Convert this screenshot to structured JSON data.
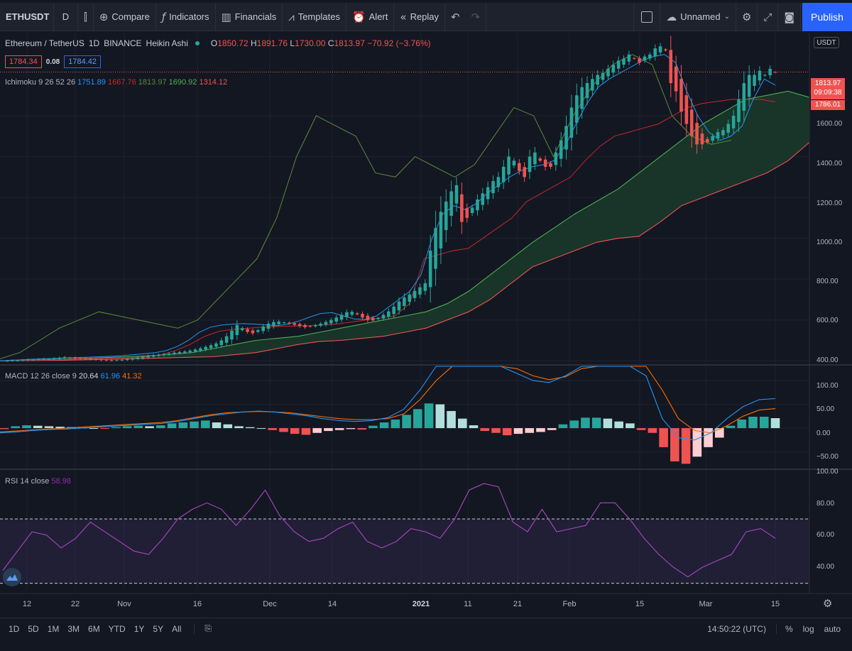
{
  "toolbar": {
    "symbol": "ETHUSDT",
    "interval": "D",
    "compare": "Compare",
    "indicators": "Indicators",
    "financials": "Financials",
    "templates": "Templates",
    "alert": "Alert",
    "replay": "Replay",
    "layout_name": "Unnamed",
    "publish": "Publish"
  },
  "legend": {
    "title": "Ethereum / TetherUS",
    "interval": "1D",
    "exchange": "BINANCE",
    "style": "Heikin Ashi",
    "o_label": "O",
    "o": "1850.72",
    "h_label": "H",
    "h": "1891.76",
    "l_label": "L",
    "l": "1730.00",
    "c_label": "C",
    "c": "1813.97",
    "change": "−70.92 (−3.76%)",
    "bid": "1784.34",
    "spread": "0.08",
    "ask": "1784.42"
  },
  "ichimoku": {
    "label": "Ichimoku 9 26 52 26",
    "conversion": "1751.89",
    "base": "1667.76",
    "lagging": "1813.97",
    "lead1": "1690.92",
    "lead2": "1314.12",
    "colors": {
      "conversion": "#2196f3",
      "base": "#c62828",
      "lagging": "#5c8a3a",
      "lead1": "#4caf50",
      "lead2": "#ef5350"
    }
  },
  "macd": {
    "label": "MACD 12 26 close 9",
    "histogram": "20.64",
    "macd": "61.96",
    "signal": "41.32",
    "scale": [
      "100.00",
      "50.00",
      "0.00",
      "−50.00"
    ]
  },
  "rsi": {
    "label": "RSI 14 close",
    "value": "58.98",
    "scale": [
      "100.00",
      "80.00",
      "60.00",
      "40.00"
    ]
  },
  "price_scale": {
    "currency": "USDT",
    "labels": [
      "1600.00",
      "1400.00",
      "1200.00",
      "1000.00",
      "800.00",
      "600.00",
      "400.00"
    ],
    "last_price": "1813.97",
    "countdown": "09:09:38",
    "base_price": "1786.01"
  },
  "time_axis": {
    "labels": [
      "12",
      "22",
      "Nov",
      "16",
      "Dec",
      "14",
      "2021",
      "11",
      "21",
      "Feb",
      "15",
      "Mar",
      "15"
    ]
  },
  "bottom_bar": {
    "ranges": [
      "1D",
      "5D",
      "1M",
      "3M",
      "6M",
      "YTD",
      "1Y",
      "5Y",
      "All"
    ],
    "clock": "14:50:22 (UTC)",
    "percent": "%",
    "log": "log",
    "auto": "auto"
  },
  "chart_data": {
    "type": "candlestick",
    "symbol": "ETHUSDT",
    "interval": "1D",
    "candle_style": "Heikin Ashi",
    "ylim": [
      380,
      2000
    ],
    "y_ticks": [
      400,
      600,
      800,
      1000,
      1200,
      1400,
      1600
    ],
    "colors": {
      "up": "#26a69a",
      "down": "#ef5350"
    },
    "close": [
      400,
      402,
      401,
      404,
      406,
      405,
      408,
      410,
      409,
      412,
      415,
      418,
      416,
      412,
      410,
      409,
      407,
      405,
      403,
      402,
      401,
      403,
      405,
      408,
      412,
      416,
      420,
      425,
      428,
      430,
      433,
      436,
      440,
      443,
      446,
      450,
      455,
      461,
      468,
      476,
      485,
      500,
      520,
      548,
      575,
      560,
      542,
      535,
      550,
      568,
      582,
      590,
      592,
      588,
      582,
      576,
      570,
      565,
      568,
      575,
      582,
      590,
      600,
      612,
      625,
      638,
      640,
      628,
      612,
      600,
      598,
      610,
      625,
      642,
      665,
      690,
      710,
      725,
      742,
      760,
      780,
      940,
      1050,
      1130,
      1180,
      1230,
      1260,
      1080,
      1100,
      1150,
      1190,
      1220,
      1250,
      1280,
      1300,
      1350,
      1400,
      1380,
      1330,
      1300,
      1400,
      1420,
      1380,
      1350,
      1350,
      1420,
      1480,
      1550,
      1640,
      1700,
      1740,
      1760,
      1780,
      1800,
      1810,
      1830,
      1850,
      1870,
      1880,
      1900,
      1880,
      1860,
      1890,
      1900,
      1930,
      1940,
      1920,
      1760,
      1720,
      1620,
      1560,
      1500,
      1460,
      1460,
      1470,
      1500,
      1520,
      1530,
      1560,
      1600,
      1680,
      1760,
      1800,
      1800,
      1820,
      1800,
      1830,
      1814
    ],
    "series": [
      {
        "name": "Conversion Line",
        "values": [
          400,
          403,
          405,
          408,
          410,
          412,
          415,
          416,
          418,
          420,
          422,
          425,
          430,
          435,
          440,
          450,
          470,
          500,
          540,
          565,
          575,
          580,
          582,
          580,
          576,
          572,
          580,
          595,
          615,
          632,
          636,
          620,
          605,
          603,
          620,
          660,
          700,
          740,
          820,
          1000,
          1120,
          1160,
          1140,
          1170,
          1220,
          1260,
          1300,
          1330,
          1350,
          1360,
          1380,
          1450,
          1560,
          1660,
          1740,
          1780,
          1810,
          1840,
          1870,
          1890,
          1900,
          1860,
          1720,
          1600,
          1520,
          1480,
          1500,
          1550,
          1680,
          1780,
          1750
        ]
      },
      {
        "name": "Base Line",
        "values": [
          400,
          401,
          402,
          404,
          406,
          408,
          410,
          412,
          414,
          416,
          420,
          430,
          450,
          480,
          520,
          545,
          555,
          560,
          565,
          568,
          570,
          572,
          575,
          580,
          590,
          600,
          610,
          620,
          680,
          900,
          920,
          940,
          950,
          1000,
          1050,
          1100,
          1180,
          1220,
          1260,
          1300,
          1380,
          1450,
          1500,
          1520,
          1540,
          1560,
          1600,
          1640,
          1660,
          1670,
          1680,
          1680,
          1680,
          1668
        ]
      },
      {
        "name": "Lagging Span",
        "values": [
          410,
          440,
          500,
          560,
          600,
          640,
          620,
          600,
          580,
          560,
          600,
          700,
          800,
          900,
          1100,
          1400,
          1600,
          1550,
          1500,
          1320,
          1300,
          1400,
          1350,
          1300,
          1360,
          1500,
          1640,
          1600,
          1400,
          1600,
          1750,
          1850,
          1900,
          1850,
          1600,
          1500,
          1460,
          1480
        ]
      },
      {
        "name": "Leading Span A",
        "values": [
          400,
          402,
          405,
          408,
          412,
          416,
          420,
          425,
          432,
          440,
          460,
          480,
          500,
          510,
          520,
          540,
          560,
          580,
          600,
          620,
          640,
          680,
          740,
          820,
          900,
          980,
          1050,
          1120,
          1180,
          1240,
          1320,
          1400,
          1480,
          1560,
          1620,
          1680,
          1700,
          1720,
          1690
        ]
      },
      {
        "name": "Leading Span B",
        "values": [
          400,
          401,
          402,
          403,
          405,
          407,
          410,
          412,
          415,
          418,
          420,
          430,
          440,
          460,
          480,
          495,
          500,
          510,
          520,
          540,
          560,
          600,
          640,
          700,
          780,
          860,
          900,
          940,
          980,
          1000,
          1010,
          1080,
          1160,
          1200,
          1240,
          1280,
          1320,
          1380,
          1470
        ]
      }
    ],
    "macd": {
      "ylim": [
        -85,
        130
      ],
      "y_ticks": [
        100,
        50,
        0,
        -50
      ],
      "macd_values": [
        -10,
        -8,
        -5,
        -3,
        -2,
        0,
        2,
        4,
        6,
        8,
        10,
        14,
        20,
        26,
        30,
        34,
        36,
        34,
        30,
        26,
        20,
        16,
        14,
        16,
        22,
        40,
        80,
        130,
        160,
        160,
        150,
        130,
        115,
        100,
        96,
        110,
        140,
        160,
        170,
        165,
        110,
        20,
        -20,
        -25,
        -10,
        20,
        45,
        60,
        62
      ],
      "signal_values": [
        -8,
        -6,
        -4,
        -2,
        0,
        2,
        4,
        6,
        8,
        10,
        12,
        16,
        22,
        28,
        32,
        34,
        35,
        34,
        32,
        28,
        24,
        20,
        18,
        18,
        20,
        30,
        60,
        100,
        130,
        145,
        150,
        140,
        125,
        110,
        102,
        108,
        125,
        145,
        160,
        165,
        140,
        80,
        20,
        -5,
        -10,
        5,
        25,
        38,
        41
      ],
      "histogram": [
        -2,
        4,
        6,
        5,
        4,
        3,
        2,
        1,
        0,
        -1,
        2,
        4,
        5,
        4,
        6,
        10,
        12,
        14,
        16,
        12,
        8,
        4,
        2,
        0,
        -4,
        -8,
        -12,
        -14,
        -10,
        -6,
        -4,
        -2,
        -3,
        5,
        12,
        18,
        28,
        40,
        52,
        50,
        36,
        20,
        6,
        -6,
        -10,
        -15,
        -12,
        -10,
        -8,
        -4,
        8,
        16,
        22,
        22,
        20,
        14,
        10,
        -4,
        -10,
        -40,
        -70,
        -75,
        -60,
        -40,
        -20,
        5,
        18,
        24,
        24,
        21
      ]
    },
    "rsi": {
      "ylim": [
        25,
        100
      ],
      "y_ticks": [
        100,
        80,
        60,
        40
      ],
      "bands": [
        70,
        30
      ],
      "values": [
        38,
        50,
        62,
        60,
        52,
        58,
        68,
        62,
        56,
        50,
        48,
        58,
        70,
        76,
        80,
        76,
        66,
        76,
        88,
        72,
        62,
        56,
        58,
        64,
        68,
        56,
        52,
        56,
        64,
        62,
        58,
        70,
        88,
        92,
        90,
        68,
        62,
        76,
        62,
        64,
        66,
        80,
        80,
        70,
        58,
        48,
        40,
        34,
        40,
        44,
        48,
        62,
        64,
        58
      ]
    }
  }
}
